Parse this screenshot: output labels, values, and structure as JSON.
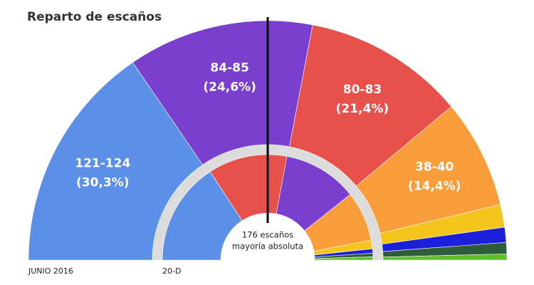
{
  "chart_data": {
    "type": "hemicycle",
    "title": "Reparto de escaños",
    "annotation": [
      "176 escaños",
      "mayoría absoluta"
    ],
    "rings": [
      {
        "name": "JUNIO 2016",
        "values": [
          30.3,
          24.6,
          21.4,
          14.4,
          3.0,
          2.0,
          1.5,
          0.8
        ],
        "value_labels": [
          "(30,3%)",
          "(24,6%)",
          "(21,4%)",
          "(14,4%)",
          null,
          null,
          null,
          null
        ],
        "seat_labels": [
          "121-124",
          "84-85",
          "80-83",
          "38-40",
          null,
          null,
          null,
          null
        ],
        "colors": [
          "#5b8fe8",
          "#7a3fcf",
          "#e8514b",
          "#f99d3b",
          "#f4c51c",
          "#1b1fd9",
          "#2e5d3b",
          "#5fbf2b"
        ]
      },
      {
        "name": "20-D",
        "values": [
          28.7,
          22.0,
          20.7,
          13.9,
          2.4,
          1.2,
          1.0,
          0.9
        ],
        "colors": [
          "#5b8fe8",
          "#e8514b",
          "#7a3fcf",
          "#f99d3b",
          "#f4c51c",
          "#1b1fd9",
          "#2e5d3b",
          "#5fbf2b"
        ]
      }
    ]
  }
}
